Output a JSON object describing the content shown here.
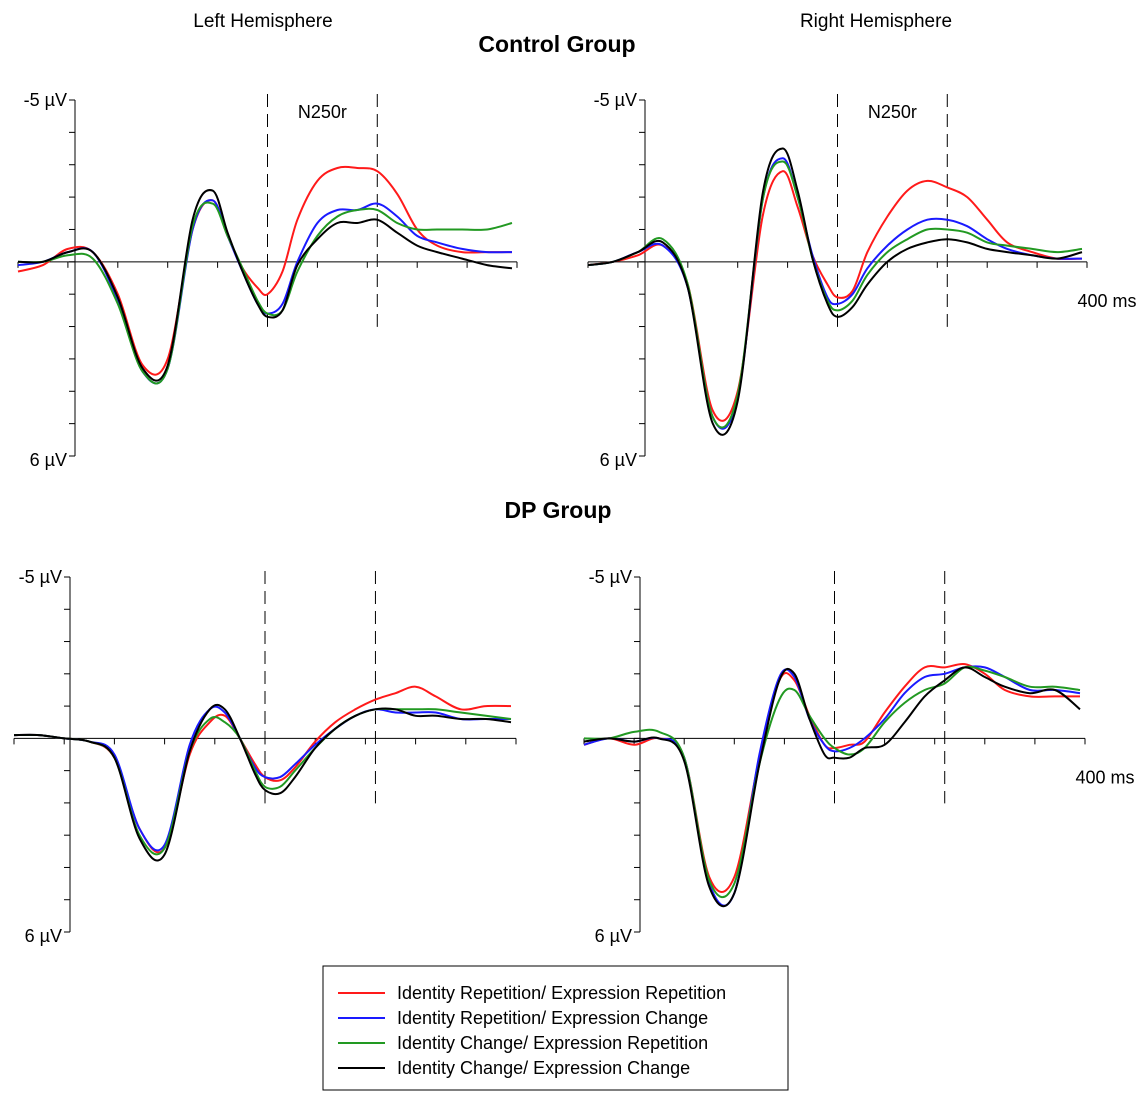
{
  "chart_data": {
    "type": "line",
    "column_titles": [
      "Left Hemisphere",
      "Right Hemisphere"
    ],
    "group_titles": [
      "Control Group",
      "DP Group"
    ],
    "y_axis": {
      "top_label": "-5 µV",
      "bottom_label": "6 µV",
      "range": [
        -5,
        6
      ],
      "inverted": true
    },
    "x_axis": {
      "end_label": "400 ms",
      "range_ms": [
        -100,
        400
      ]
    },
    "analysis_window": {
      "label": "N250r",
      "start_ms": 150,
      "end_ms": 260
    },
    "legend": {
      "placement": "bottom-center",
      "entries": [
        {
          "name": "Identity Repetition/ Expression Repetition",
          "color": "#ff1a1a"
        },
        {
          "name": "Identity Repetition/ Expression Change",
          "color": "#1a1aff"
        },
        {
          "name": "Identity Change/ Expression Repetition",
          "color": "#229922"
        },
        {
          "name": "Identity Change/ Expression Change",
          "color": "#000000"
        }
      ]
    },
    "panels": [
      {
        "group": "Control Group",
        "hemisphere": "Left Hemisphere",
        "window_label_shown": true,
        "end_label_shown": false,
        "x": [
          -100,
          -75,
          -50,
          -25,
          0,
          25,
          50,
          75,
          95,
          110,
          125,
          140,
          150,
          165,
          180,
          200,
          220,
          240,
          260,
          280,
          300,
          320,
          345,
          370,
          395
        ],
        "series": [
          {
            "name": "Identity Repetition/ Expression Repetition",
            "values": [
              0.3,
              0.1,
              -0.4,
              -0.3,
              1.0,
              3.2,
              3.0,
              -1.0,
              -1.9,
              -0.8,
              0.2,
              0.8,
              1.0,
              0.3,
              -1.3,
              -2.5,
              -2.9,
              -2.9,
              -2.8,
              -2.1,
              -1.0,
              -0.5,
              -0.3,
              -0.3,
              -0.3
            ]
          },
          {
            "name": "Identity Repetition/ Expression Change",
            "values": [
              0.1,
              0.0,
              -0.3,
              -0.3,
              1.2,
              3.4,
              3.3,
              -1.0,
              -1.9,
              -0.8,
              0.3,
              1.3,
              1.6,
              1.3,
              0.0,
              -1.2,
              -1.6,
              -1.6,
              -1.8,
              -1.4,
              -0.8,
              -0.6,
              -0.4,
              -0.3,
              -0.3
            ]
          },
          {
            "name": "Identity Change/ Expression Repetition",
            "values": [
              0.0,
              0.0,
              -0.2,
              -0.1,
              1.3,
              3.4,
              3.3,
              -1.1,
              -1.8,
              -0.8,
              0.2,
              1.2,
              1.6,
              1.5,
              0.3,
              -0.8,
              -1.4,
              -1.6,
              -1.6,
              -1.2,
              -1.0,
              -1.0,
              -1.0,
              -1.0,
              -1.2
            ]
          },
          {
            "name": "Identity Change/ Expression Change",
            "values": [
              0.0,
              0.0,
              -0.3,
              -0.3,
              1.1,
              3.3,
              3.2,
              -1.3,
              -2.2,
              -0.9,
              0.3,
              1.3,
              1.7,
              1.5,
              0.1,
              -0.7,
              -1.2,
              -1.2,
              -1.3,
              -0.9,
              -0.5,
              -0.3,
              -0.1,
              0.1,
              0.2
            ]
          }
        ]
      },
      {
        "group": "Control Group",
        "hemisphere": "Right Hemisphere",
        "window_label_shown": true,
        "end_label_shown": true,
        "x": [
          -100,
          -75,
          -50,
          -25,
          0,
          25,
          50,
          75,
          95,
          110,
          125,
          140,
          150,
          165,
          180,
          200,
          220,
          240,
          260,
          280,
          300,
          320,
          345,
          370,
          395
        ],
        "series": [
          {
            "name": "Identity Repetition/ Expression Repetition",
            "values": [
              0.1,
              0.0,
              -0.2,
              -0.5,
              0.7,
              4.6,
              4.0,
              -1.4,
              -2.8,
              -1.7,
              -0.2,
              0.7,
              1.1,
              0.9,
              -0.3,
              -1.4,
              -2.2,
              -2.5,
              -2.3,
              -2.0,
              -1.3,
              -0.6,
              -0.3,
              -0.1,
              -0.1
            ]
          },
          {
            "name": "Identity Repetition/ Expression Change",
            "values": [
              0.1,
              0.0,
              -0.3,
              -0.5,
              0.8,
              4.8,
              4.2,
              -1.9,
              -3.2,
              -2.0,
              -0.2,
              1.1,
              1.3,
              1.0,
              0.2,
              -0.5,
              -1.0,
              -1.3,
              -1.3,
              -1.1,
              -0.7,
              -0.4,
              -0.2,
              -0.1,
              -0.1
            ]
          },
          {
            "name": "Identity Change/ Expression Repetition",
            "values": [
              0.1,
              0.0,
              -0.3,
              -0.7,
              0.7,
              4.8,
              4.1,
              -1.9,
              -3.1,
              -2.0,
              -0.1,
              1.2,
              1.5,
              1.2,
              0.4,
              -0.3,
              -0.7,
              -1.0,
              -1.0,
              -0.9,
              -0.6,
              -0.5,
              -0.4,
              -0.3,
              -0.4
            ]
          },
          {
            "name": "Identity Change/ Expression Change",
            "values": [
              0.1,
              0.0,
              -0.3,
              -0.6,
              0.8,
              5.0,
              4.3,
              -2.1,
              -3.5,
              -2.2,
              -0.1,
              1.3,
              1.7,
              1.4,
              0.7,
              0.0,
              -0.4,
              -0.6,
              -0.7,
              -0.6,
              -0.4,
              -0.3,
              -0.2,
              -0.1,
              -0.3
            ]
          }
        ]
      },
      {
        "group": "DP Group",
        "hemisphere": "Left Hemisphere",
        "window_label_shown": false,
        "end_label_shown": false,
        "x": [
          -100,
          -75,
          -50,
          -25,
          0,
          25,
          50,
          75,
          95,
          110,
          125,
          140,
          150,
          165,
          180,
          200,
          220,
          240,
          260,
          280,
          300,
          320,
          345,
          370,
          395
        ],
        "series": [
          {
            "name": "Identity Repetition/ Expression Repetition",
            "values": [
              -0.1,
              -0.1,
              0.0,
              0.1,
              0.6,
              2.8,
              3.4,
              0.5,
              -0.5,
              -0.7,
              0.0,
              0.8,
              1.2,
              1.3,
              0.9,
              0.1,
              -0.5,
              -0.9,
              -1.2,
              -1.4,
              -1.6,
              -1.3,
              -0.9,
              -1.0,
              -1.0
            ]
          },
          {
            "name": "Identity Repetition/ Expression Change",
            "values": [
              -0.1,
              -0.1,
              0.0,
              0.1,
              0.5,
              2.8,
              3.3,
              0.2,
              -0.9,
              -0.8,
              0.0,
              0.9,
              1.2,
              1.2,
              0.8,
              0.2,
              -0.3,
              -0.7,
              -0.9,
              -0.8,
              -0.8,
              -0.8,
              -0.6,
              -0.6,
              -0.6
            ]
          },
          {
            "name": "Identity Change/ Expression Repetition",
            "values": [
              -0.1,
              -0.1,
              0.0,
              0.1,
              0.6,
              3.0,
              3.4,
              0.4,
              -0.6,
              -0.5,
              0.0,
              1.0,
              1.5,
              1.5,
              1.0,
              0.3,
              -0.3,
              -0.7,
              -0.9,
              -0.9,
              -0.9,
              -0.9,
              -0.8,
              -0.7,
              -0.6
            ]
          },
          {
            "name": "Identity Change/ Expression Change",
            "values": [
              -0.1,
              -0.1,
              0.0,
              0.1,
              0.6,
              3.1,
              3.6,
              0.4,
              -0.9,
              -0.9,
              0.0,
              1.1,
              1.6,
              1.7,
              1.2,
              0.3,
              -0.3,
              -0.7,
              -0.9,
              -0.9,
              -0.7,
              -0.7,
              -0.6,
              -0.6,
              -0.5
            ]
          }
        ]
      },
      {
        "group": "DP Group",
        "hemisphere": "Right Hemisphere",
        "window_label_shown": false,
        "end_label_shown": true,
        "x": [
          -100,
          -75,
          -50,
          -25,
          0,
          25,
          50,
          75,
          95,
          110,
          125,
          140,
          150,
          165,
          180,
          200,
          220,
          240,
          260,
          280,
          300,
          320,
          345,
          370,
          395
        ],
        "series": [
          {
            "name": "Identity Repetition/ Expression Repetition",
            "values": [
              0.2,
              0.0,
              0.2,
              0.0,
              0.6,
              4.3,
              4.3,
              0.6,
              -1.8,
              -1.8,
              -0.7,
              0.2,
              0.3,
              0.2,
              0.1,
              -0.8,
              -1.6,
              -2.2,
              -2.2,
              -2.3,
              -2.0,
              -1.5,
              -1.3,
              -1.3,
              -1.3
            ]
          },
          {
            "name": "Identity Repetition/ Expression Change",
            "values": [
              0.2,
              0.0,
              0.1,
              0.0,
              0.6,
              4.5,
              4.8,
              0.5,
              -1.9,
              -1.9,
              -0.6,
              0.2,
              0.4,
              0.3,
              0.0,
              -0.6,
              -1.4,
              -1.9,
              -2.0,
              -2.2,
              -2.2,
              -1.9,
              -1.5,
              -1.5,
              -1.4
            ]
          },
          {
            "name": "Identity Change/ Expression Repetition",
            "values": [
              0.0,
              0.0,
              -0.2,
              -0.2,
              0.6,
              4.4,
              4.5,
              0.8,
              -1.2,
              -1.5,
              -0.7,
              0.0,
              0.3,
              0.5,
              0.3,
              -0.5,
              -1.1,
              -1.5,
              -1.7,
              -2.2,
              -2.1,
              -1.9,
              -1.6,
              -1.6,
              -1.5
            ]
          },
          {
            "name": "Identity Change/ Expression Change",
            "values": [
              0.1,
              0.0,
              0.1,
              0.0,
              0.7,
              4.6,
              4.8,
              0.8,
              -1.8,
              -2.0,
              -0.6,
              0.5,
              0.6,
              0.6,
              0.3,
              0.2,
              -0.5,
              -1.3,
              -1.8,
              -2.2,
              -1.9,
              -1.6,
              -1.4,
              -1.5,
              -0.9
            ]
          }
        ]
      }
    ]
  }
}
